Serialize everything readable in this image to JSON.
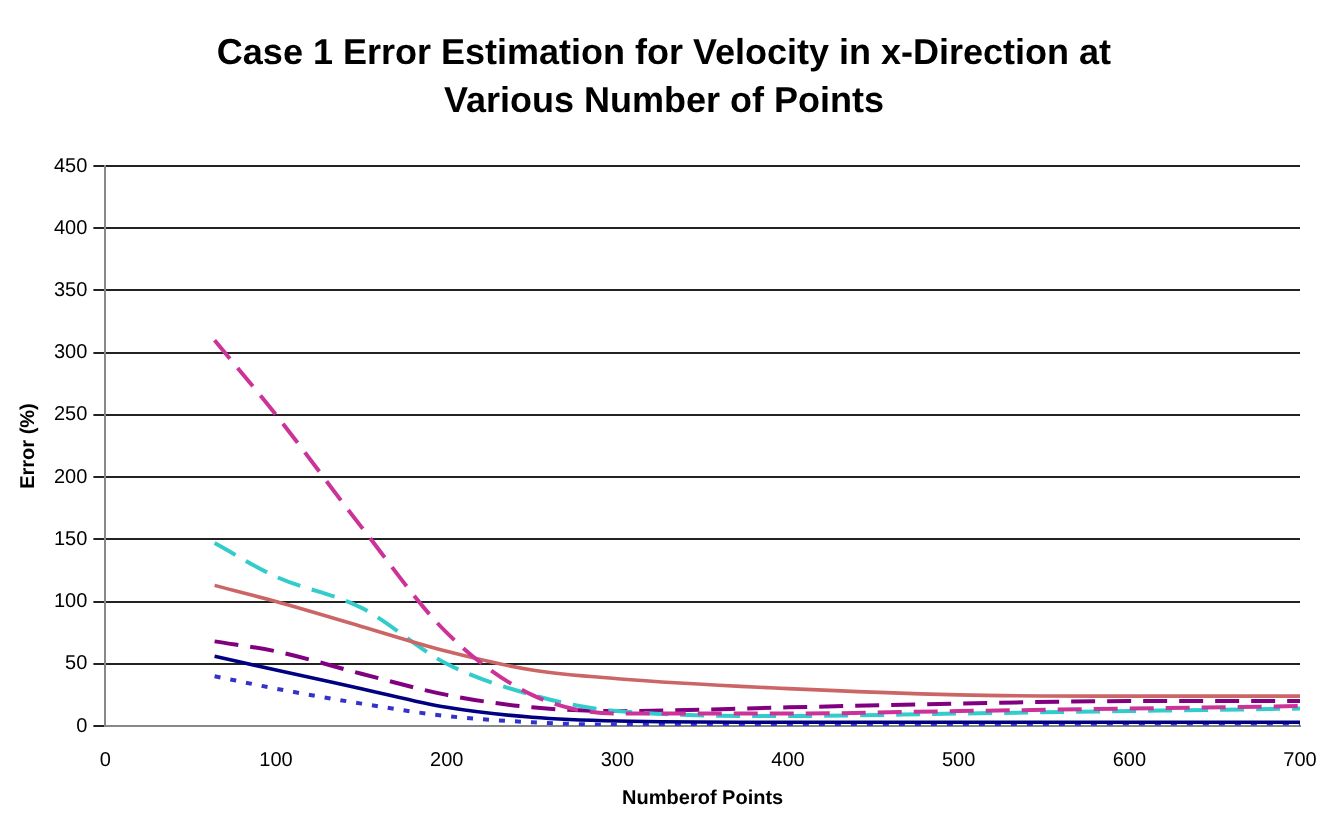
{
  "chart_data": {
    "type": "line",
    "title": "Case 1 Error Estimation for Velocity in x-Direction at Various Number of Points",
    "xlabel": "Numberof Points",
    "ylabel": "Error (%)",
    "x": [
      64,
      100,
      150,
      200,
      250,
      300,
      400,
      500,
      600,
      700
    ],
    "xlim": [
      0,
      700
    ],
    "xticks": [
      0,
      100,
      200,
      300,
      400,
      500,
      600,
      700
    ],
    "ylim": [
      0,
      450
    ],
    "yticks": [
      0,
      50,
      100,
      150,
      200,
      250,
      300,
      350,
      400,
      450
    ],
    "grid": "y",
    "legend": false,
    "marker": "none",
    "series": [
      {
        "color": "#cc3399",
        "line_style": "dashed",
        "values": [
          310,
          250,
          160,
          75,
          25,
          10,
          10,
          12,
          14,
          16
        ]
      },
      {
        "color": "#cc6666",
        "line_style": "solid",
        "values": [
          113,
          100,
          80,
          60,
          45,
          38,
          30,
          25,
          24,
          24
        ]
      },
      {
        "color": "#33cccc",
        "line_style": "dashed",
        "values": [
          147,
          120,
          95,
          50,
          25,
          12,
          8,
          10,
          12,
          14
        ]
      },
      {
        "color": "#800080",
        "line_style": "dashed",
        "values": [
          68,
          60,
          42,
          25,
          15,
          12,
          15,
          18,
          20,
          20
        ]
      },
      {
        "color": "#000080",
        "line_style": "solid",
        "values": [
          56,
          45,
          30,
          15,
          7,
          4,
          3,
          3,
          3,
          3
        ]
      },
      {
        "color": "#3333cc",
        "line_style": "dotted",
        "values": [
          40,
          30,
          18,
          8,
          3,
          1,
          1,
          1,
          2,
          2
        ]
      }
    ]
  }
}
